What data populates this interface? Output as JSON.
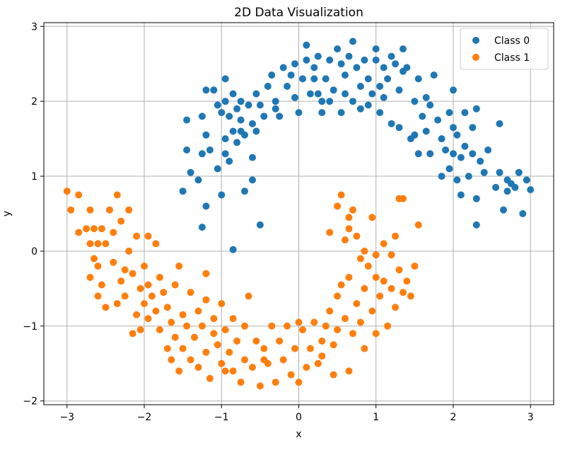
{
  "chart_data": {
    "type": "scatter",
    "title": "2D Data Visualization",
    "xlabel": "x",
    "ylabel": "y",
    "xlim": [
      -3.3,
      3.3
    ],
    "ylim": [
      -2.05,
      3.05
    ],
    "xticks": [
      -3,
      -2,
      -1,
      0,
      1,
      2,
      3
    ],
    "xtick_labels": [
      "−3",
      "−2",
      "−1",
      "0",
      "1",
      "2",
      "3"
    ],
    "yticks": [
      -2,
      -1,
      0,
      1,
      2,
      3
    ],
    "ytick_labels": [
      "−2",
      "−1",
      "0",
      "1",
      "2",
      "3"
    ],
    "grid": true,
    "legend_position": "top-right",
    "series": [
      {
        "name": "Class 0",
        "color": "#1f77b4",
        "points": [
          [
            -1.5,
            0.8
          ],
          [
            -1.45,
            1.35
          ],
          [
            -1.45,
            1.75
          ],
          [
            -1.4,
            1.05
          ],
          [
            -1.3,
            0.95
          ],
          [
            -1.25,
            1.3
          ],
          [
            -1.25,
            1.8
          ],
          [
            -1.2,
            2.15
          ],
          [
            -1.2,
            1.55
          ],
          [
            -1.2,
            0.6
          ],
          [
            -1.25,
            0.32
          ],
          [
            -1.15,
            1.35
          ],
          [
            -1.1,
            2.15
          ],
          [
            -1.05,
            1.95
          ],
          [
            -1.05,
            1.1
          ],
          [
            -1.0,
            1.85
          ],
          [
            -1.0,
            0.75
          ],
          [
            -0.95,
            2.3
          ],
          [
            -0.95,
            2.0
          ],
          [
            -0.95,
            1.5
          ],
          [
            -0.95,
            1.3
          ],
          [
            -0.9,
            1.8
          ],
          [
            -0.9,
            1.2
          ],
          [
            -0.85,
            2.1
          ],
          [
            -0.85,
            1.6
          ],
          [
            -0.8,
            1.9
          ],
          [
            -0.8,
            1.45
          ],
          [
            -0.75,
            2.0
          ],
          [
            -0.75,
            1.75
          ],
          [
            -0.7,
            1.55
          ],
          [
            -0.7,
            0.8
          ],
          [
            -0.65,
            1.95
          ],
          [
            -0.6,
            1.7
          ],
          [
            -0.6,
            1.25
          ],
          [
            -0.6,
            0.95
          ],
          [
            -0.55,
            2.1
          ],
          [
            -0.55,
            1.6
          ],
          [
            -0.5,
            1.95
          ],
          [
            -0.5,
            0.35
          ],
          [
            -0.45,
            1.8
          ],
          [
            -0.4,
            2.2
          ],
          [
            -0.35,
            2.35
          ],
          [
            -0.3,
            2.0
          ],
          [
            -0.25,
            1.8
          ],
          [
            -0.2,
            2.45
          ],
          [
            -0.15,
            2.2
          ],
          [
            -0.1,
            2.35
          ],
          [
            -0.05,
            2.5
          ],
          [
            -0.05,
            2.05
          ],
          [
            0.0,
            1.85
          ],
          [
            0.05,
            2.3
          ],
          [
            0.1,
            2.55
          ],
          [
            0.1,
            2.75
          ],
          [
            0.15,
            2.1
          ],
          [
            0.2,
            2.45
          ],
          [
            0.2,
            2.3
          ],
          [
            0.25,
            2.1
          ],
          [
            0.3,
            2.0
          ],
          [
            0.3,
            1.85
          ],
          [
            0.35,
            2.3
          ],
          [
            0.4,
            2.55
          ],
          [
            0.4,
            2.0
          ],
          [
            0.45,
            2.15
          ],
          [
            0.5,
            2.7
          ],
          [
            0.55,
            2.5
          ],
          [
            0.55,
            1.85
          ],
          [
            0.6,
            2.35
          ],
          [
            0.6,
            2.1
          ],
          [
            0.65,
            2.6
          ],
          [
            0.7,
            2.8
          ],
          [
            0.7,
            2.0
          ],
          [
            0.75,
            2.45
          ],
          [
            0.8,
            2.2
          ],
          [
            0.8,
            1.9
          ],
          [
            0.85,
            2.55
          ],
          [
            0.9,
            2.3
          ],
          [
            0.9,
            1.95
          ],
          [
            0.95,
            2.1
          ],
          [
            1.0,
            2.55
          ],
          [
            1.0,
            2.7
          ],
          [
            1.05,
            2.2
          ],
          [
            1.05,
            1.85
          ],
          [
            1.1,
            2.45
          ],
          [
            1.1,
            2.05
          ],
          [
            1.15,
            2.3
          ],
          [
            1.2,
            1.7
          ],
          [
            1.2,
            2.6
          ],
          [
            1.25,
            2.5
          ],
          [
            1.3,
            2.15
          ],
          [
            1.3,
            1.65
          ],
          [
            1.35,
            2.7
          ],
          [
            1.35,
            2.4
          ],
          [
            1.4,
            2.45
          ],
          [
            1.45,
            1.5
          ],
          [
            1.5,
            2.0
          ],
          [
            1.5,
            1.55
          ],
          [
            1.55,
            1.3
          ],
          [
            1.55,
            2.3
          ],
          [
            1.6,
            1.8
          ],
          [
            1.65,
            2.05
          ],
          [
            1.65,
            1.6
          ],
          [
            1.7,
            1.95
          ],
          [
            1.7,
            1.3
          ],
          [
            1.75,
            2.35
          ],
          [
            1.8,
            1.75
          ],
          [
            1.85,
            1.5
          ],
          [
            1.85,
            1.0
          ],
          [
            1.9,
            1.35
          ],
          [
            1.95,
            1.85
          ],
          [
            1.95,
            1.1
          ],
          [
            2.0,
            1.65
          ],
          [
            2.0,
            1.3
          ],
          [
            2.0,
            2.15
          ],
          [
            2.05,
            0.95
          ],
          [
            2.05,
            1.55
          ],
          [
            2.1,
            1.25
          ],
          [
            2.1,
            0.75
          ],
          [
            2.15,
            1.85
          ],
          [
            2.15,
            1.4
          ],
          [
            2.2,
            1.0
          ],
          [
            2.25,
            1.65
          ],
          [
            2.25,
            1.3
          ],
          [
            2.3,
            1.9
          ],
          [
            2.3,
            0.7
          ],
          [
            2.3,
            0.35
          ],
          [
            2.35,
            1.2
          ],
          [
            2.4,
            1.05
          ],
          [
            2.45,
            1.35
          ],
          [
            2.55,
            0.85
          ],
          [
            2.6,
            1.05
          ],
          [
            2.6,
            1.7
          ],
          [
            2.65,
            0.55
          ],
          [
            2.7,
            0.8
          ],
          [
            2.7,
            0.95
          ],
          [
            2.75,
            0.9
          ],
          [
            2.8,
            0.85
          ],
          [
            2.85,
            1.05
          ],
          [
            2.9,
            0.5
          ],
          [
            2.95,
            0.95
          ],
          [
            3.0,
            0.82
          ],
          [
            -0.85,
            0.02
          ],
          [
            -0.75,
            1.6
          ],
          [
            -0.3,
            1.9
          ],
          [
            0.25,
            2.6
          ]
        ]
      },
      {
        "name": "Class 1",
        "color": "#ff7f0e",
        "points": [
          [
            -3.0,
            0.8
          ],
          [
            -2.95,
            0.55
          ],
          [
            -2.85,
            0.75
          ],
          [
            -2.85,
            0.25
          ],
          [
            -2.75,
            0.3
          ],
          [
            -2.7,
            0.55
          ],
          [
            -2.7,
            0.1
          ],
          [
            -2.7,
            -0.35
          ],
          [
            -2.65,
            -0.1
          ],
          [
            -2.65,
            0.3
          ],
          [
            -2.6,
            -0.6
          ],
          [
            -2.6,
            -0.2
          ],
          [
            -2.55,
            0.3
          ],
          [
            -2.55,
            -0.45
          ],
          [
            -2.5,
            0.1
          ],
          [
            -2.5,
            -0.75
          ],
          [
            -2.45,
            0.55
          ],
          [
            -2.4,
            0.25
          ],
          [
            -2.4,
            -0.15
          ],
          [
            -2.35,
            0.75
          ],
          [
            -2.3,
            -0.4
          ],
          [
            -2.3,
            0.4
          ],
          [
            -2.25,
            -0.6
          ],
          [
            -2.25,
            -0.25
          ],
          [
            -2.2,
            0.55
          ],
          [
            -2.2,
            0.0
          ],
          [
            -2.15,
            -0.3
          ],
          [
            -2.1,
            -0.85
          ],
          [
            -2.1,
            0.2
          ],
          [
            -2.05,
            -0.5
          ],
          [
            -2.05,
            -1.05
          ],
          [
            -2.0,
            -0.2
          ],
          [
            -2.0,
            -0.7
          ],
          [
            -1.95,
            -0.45
          ],
          [
            -1.95,
            -0.9
          ],
          [
            -1.9,
            -0.6
          ],
          [
            -1.85,
            0.1
          ],
          [
            -1.85,
            -0.8
          ],
          [
            -1.8,
            -1.05
          ],
          [
            -1.8,
            -0.35
          ],
          [
            -1.75,
            -0.55
          ],
          [
            -1.7,
            -1.3
          ],
          [
            -1.7,
            -0.75
          ],
          [
            -1.65,
            -1.45
          ],
          [
            -1.65,
            -0.95
          ],
          [
            -1.6,
            -0.45
          ],
          [
            -1.6,
            -1.15
          ],
          [
            -1.55,
            -1.6
          ],
          [
            -1.5,
            -0.85
          ],
          [
            -1.5,
            -1.3
          ],
          [
            -1.45,
            -1.0
          ],
          [
            -1.4,
            -0.55
          ],
          [
            -1.4,
            -1.45
          ],
          [
            -1.35,
            -1.15
          ],
          [
            -1.3,
            -0.8
          ],
          [
            -1.3,
            -1.55
          ],
          [
            -1.25,
            -1.0
          ],
          [
            -1.2,
            -1.35
          ],
          [
            -1.2,
            -0.65
          ],
          [
            -1.15,
            -1.7
          ],
          [
            -1.1,
            -1.1
          ],
          [
            -1.1,
            -0.9
          ],
          [
            -1.05,
            -1.25
          ],
          [
            -1.0,
            -1.5
          ],
          [
            -1.0,
            -0.7
          ],
          [
            -0.95,
            -1.05
          ],
          [
            -0.9,
            -1.35
          ],
          [
            -0.85,
            -1.6
          ],
          [
            -0.85,
            -0.9
          ],
          [
            -0.8,
            -1.2
          ],
          [
            -0.75,
            -1.75
          ],
          [
            -0.7,
            -1.0
          ],
          [
            -0.7,
            -1.45
          ],
          [
            -0.65,
            -0.6
          ],
          [
            -0.6,
            -1.55
          ],
          [
            -0.55,
            -1.2
          ],
          [
            -0.5,
            -1.8
          ],
          [
            -0.45,
            -1.3
          ],
          [
            -0.4,
            -1.5
          ],
          [
            -0.35,
            -1.0
          ],
          [
            -0.3,
            -1.75
          ],
          [
            -0.25,
            -1.2
          ],
          [
            -0.2,
            -1.45
          ],
          [
            -0.15,
            -1.0
          ],
          [
            -0.1,
            -1.65
          ],
          [
            -0.05,
            -1.3
          ],
          [
            0.0,
            -0.95
          ],
          [
            0.0,
            -1.75
          ],
          [
            0.05,
            -1.05
          ],
          [
            0.1,
            -1.55
          ],
          [
            0.15,
            -1.3
          ],
          [
            0.2,
            -0.95
          ],
          [
            0.25,
            -1.5
          ],
          [
            0.3,
            -1.2
          ],
          [
            0.35,
            -1.0
          ],
          [
            0.4,
            -0.8
          ],
          [
            0.45,
            -1.25
          ],
          [
            0.5,
            -0.6
          ],
          [
            0.5,
            -1.05
          ],
          [
            0.55,
            -0.45
          ],
          [
            0.6,
            -0.9
          ],
          [
            0.65,
            -1.6
          ],
          [
            0.65,
            -0.35
          ],
          [
            0.7,
            -1.1
          ],
          [
            0.75,
            -0.7
          ],
          [
            0.8,
            -0.95
          ],
          [
            0.85,
            -1.3
          ],
          [
            0.85,
            -0.5
          ],
          [
            0.9,
            -0.2
          ],
          [
            0.95,
            -0.8
          ],
          [
            1.0,
            -1.1
          ],
          [
            1.0,
            -0.35
          ],
          [
            1.05,
            -0.6
          ],
          [
            1.1,
            -0.4
          ],
          [
            1.15,
            -1.0
          ],
          [
            1.2,
            -0.5
          ],
          [
            1.25,
            -0.75
          ],
          [
            1.3,
            -0.25
          ],
          [
            1.35,
            -0.55
          ],
          [
            1.4,
            -0.4
          ],
          [
            1.45,
            -0.6
          ],
          [
            1.5,
            -0.2
          ],
          [
            1.55,
            0.35
          ],
          [
            1.3,
            0.7
          ],
          [
            1.25,
            0.2
          ],
          [
            1.1,
            0.1
          ],
          [
            0.95,
            0.45
          ],
          [
            0.85,
            0.0
          ],
          [
            0.75,
            0.2
          ],
          [
            0.7,
            0.55
          ],
          [
            0.65,
            0.3
          ],
          [
            0.6,
            0.15
          ],
          [
            0.55,
            0.75
          ],
          [
            0.5,
            0.6
          ],
          [
            0.4,
            0.25
          ],
          [
            0.65,
            0.45
          ],
          [
            1.0,
            -0.05
          ],
          [
            1.35,
            0.7
          ],
          [
            -2.6,
            0.1
          ],
          [
            -2.35,
            -0.7
          ],
          [
            -1.95,
            0.2
          ],
          [
            -1.55,
            -0.2
          ],
          [
            -1.2,
            -0.3
          ],
          [
            -0.45,
            -1.45
          ],
          [
            0.3,
            -1.4
          ],
          [
            0.8,
            -0.1
          ],
          [
            1.2,
            -0.05
          ],
          [
            -2.15,
            -1.1
          ],
          [
            -0.95,
            -1.6
          ],
          [
            0.45,
            -1.65
          ]
        ]
      }
    ]
  }
}
